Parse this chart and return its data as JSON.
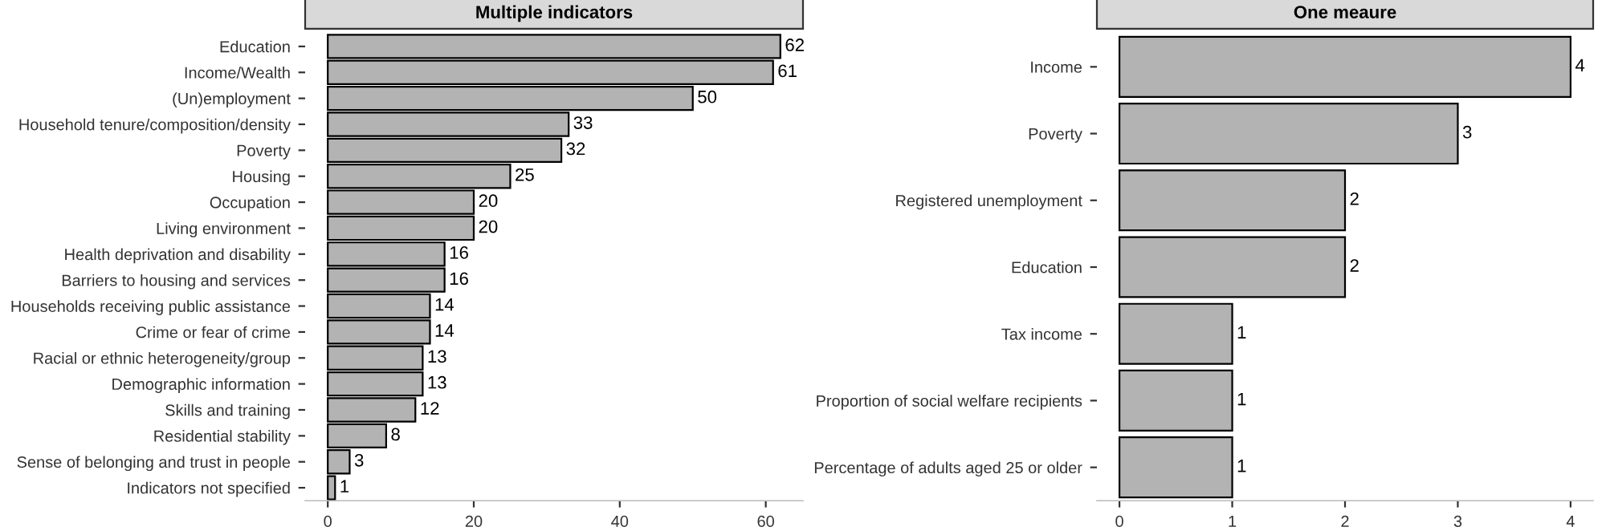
{
  "chart_data": [
    {
      "type": "bar",
      "orientation": "horizontal",
      "title": "Multiple indicators",
      "categories": [
        "Education",
        "Income/Wealth",
        "(Un)employment",
        "Household tenure/composition/density",
        "Poverty",
        "Housing",
        "Occupation",
        "Living environment",
        "Health deprivation and disability",
        "Barriers to housing and services",
        "Households receiving public assistance",
        "Crime or fear of crime",
        "Racial or ethnic heterogeneity/group",
        "Demographic information",
        "Skills and training",
        "Residential stability",
        "Sense of belonging and trust in people",
        "Indicators not specified"
      ],
      "values": [
        62,
        61,
        50,
        33,
        32,
        25,
        20,
        20,
        16,
        16,
        14,
        14,
        13,
        13,
        12,
        8,
        3,
        1
      ],
      "color": "#b3b3b3",
      "xlim": [
        -3.1,
        65.1
      ],
      "xticks": [
        0,
        20,
        40,
        60
      ],
      "data_labels": true,
      "grid": false,
      "legend": false
    },
    {
      "type": "bar",
      "orientation": "horizontal",
      "title": "One meaure",
      "categories": [
        "Income",
        "Poverty",
        "Registered unemployment",
        "Education",
        "Tax income",
        "Proportion of social welfare recipients",
        "Percentage of adults aged 25 or older"
      ],
      "values": [
        4,
        3,
        2,
        2,
        1,
        1,
        1
      ],
      "color": "#b3b3b3",
      "xlim": [
        -0.2,
        4.2
      ],
      "xticks": [
        0,
        1,
        2,
        3,
        4
      ],
      "data_labels": true,
      "grid": false,
      "legend": false
    }
  ]
}
